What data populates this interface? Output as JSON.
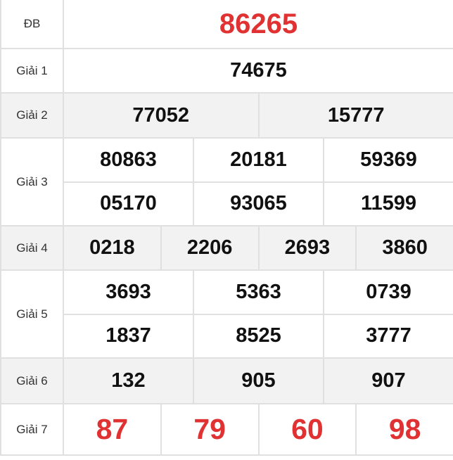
{
  "colors": {
    "accent_red": "#e03232",
    "row_alt": "#f2f2f2"
  },
  "prizes": [
    {
      "label": "ĐB",
      "numbers": [
        "86265"
      ]
    },
    {
      "label": "Giải 1",
      "numbers": [
        "74675"
      ]
    },
    {
      "label": "Giải 2",
      "numbers": [
        "77052",
        "15777"
      ]
    },
    {
      "label": "Giải 3",
      "numbers": [
        "80863",
        "20181",
        "59369",
        "05170",
        "93065",
        "11599"
      ]
    },
    {
      "label": "Giải 4",
      "numbers": [
        "0218",
        "2206",
        "2693",
        "3860"
      ]
    },
    {
      "label": "Giải 5",
      "numbers": [
        "3693",
        "5363",
        "0739",
        "1837",
        "8525",
        "3777"
      ]
    },
    {
      "label": "Giải 6",
      "numbers": [
        "132",
        "905",
        "907"
      ]
    },
    {
      "label": "Giải 7",
      "numbers": [
        "87",
        "79",
        "60",
        "98"
      ]
    }
  ]
}
